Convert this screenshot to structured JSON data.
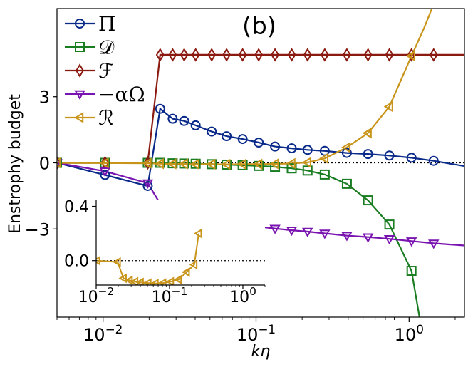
{
  "chart_data": {
    "type": "line",
    "xscale": "log",
    "xlabel": "kη",
    "ylabel": "Enstrophy budget",
    "panel_label": "(b)",
    "xlim": [
      0.005,
      2.3
    ],
    "ylim": [
      -7,
      7
    ],
    "yticks": [
      {
        "value": -3,
        "label": "−3"
      },
      {
        "value": 0,
        "label": "0"
      },
      {
        "value": 3,
        "label": "3"
      }
    ],
    "xticks": [
      {
        "value": 0.01,
        "base": "10",
        "exp": "−2"
      },
      {
        "value": 0.1,
        "base": "10",
        "exp": "−1"
      },
      {
        "value": 1,
        "base": "10",
        "exp": "0"
      }
    ],
    "zero_line": true,
    "legend": {
      "placement": "top-left"
    },
    "series": [
      {
        "name": "Π",
        "label": "Π",
        "color": "#0a2a8a",
        "marker": "circle",
        "x": [
          0.005,
          0.0103,
          0.0196,
          0.0236,
          0.0285,
          0.0339,
          0.0403,
          0.0513,
          0.0642,
          0.0817,
          0.104,
          0.133,
          0.171,
          0.217,
          0.281,
          0.392,
          0.539,
          0.743,
          1.037,
          1.447
        ],
        "y": [
          0,
          -0.55,
          -1.05,
          2.45,
          2.0,
          1.9,
          1.7,
          1.42,
          1.21,
          1.08,
          0.92,
          0.74,
          0.66,
          0.59,
          0.54,
          0.45,
          0.4,
          0.33,
          0.23,
          0.09
        ],
        "line_x": [
          0.005,
          0.0103,
          0.0196,
          0.0236,
          0.0285,
          0.0339,
          0.0403,
          0.0513,
          0.0642,
          0.0817,
          0.104,
          0.133,
          0.171,
          0.217,
          0.281,
          0.392,
          0.539,
          0.743,
          1.037,
          1.447,
          2.3
        ],
        "line_y": [
          0,
          -0.55,
          -1.05,
          2.45,
          2.0,
          1.9,
          1.7,
          1.42,
          1.21,
          1.08,
          0.92,
          0.74,
          0.66,
          0.59,
          0.54,
          0.45,
          0.4,
          0.33,
          0.23,
          0.09,
          -0.15
        ]
      },
      {
        "name": "D",
        "label": "𝒟",
        "color": "#1a7d22",
        "marker": "square",
        "x": [
          0.005,
          0.0103,
          0.0196,
          0.0236,
          0.0285,
          0.0339,
          0.0403,
          0.0513,
          0.0642,
          0.0817,
          0.104,
          0.133,
          0.171,
          0.217,
          0.281,
          0.392,
          0.539,
          0.743,
          1.037
        ],
        "y": [
          0,
          0,
          0,
          0,
          -0.02,
          -0.03,
          -0.04,
          -0.06,
          -0.08,
          -0.11,
          -0.14,
          -0.18,
          -0.25,
          -0.35,
          -0.53,
          -0.95,
          -1.7,
          -2.8,
          -4.9
        ],
        "line_x": [
          0.005,
          0.0103,
          0.0196,
          0.0236,
          0.0285,
          0.0339,
          0.0403,
          0.0513,
          0.0642,
          0.0817,
          0.104,
          0.133,
          0.171,
          0.217,
          0.281,
          0.392,
          0.539,
          0.743,
          1.037,
          1.17
        ],
        "line_y": [
          0,
          0,
          0,
          0,
          -0.02,
          -0.03,
          -0.04,
          -0.06,
          -0.08,
          -0.11,
          -0.14,
          -0.18,
          -0.25,
          -0.35,
          -0.53,
          -0.95,
          -1.7,
          -2.8,
          -4.9,
          -7
        ]
      },
      {
        "name": "F",
        "label": "ℱ",
        "color": "#8b1a10",
        "marker": "diamond",
        "x": [
          0.005,
          0.0103,
          0.0196,
          0.0236,
          0.0285,
          0.0339,
          0.0403,
          0.0513,
          0.0642,
          0.0817,
          0.104,
          0.133,
          0.171,
          0.217,
          0.281,
          0.392,
          0.539,
          0.743,
          1.037,
          1.447
        ],
        "y": [
          0,
          0,
          0,
          4.9,
          4.9,
          4.9,
          4.9,
          4.9,
          4.9,
          4.9,
          4.9,
          4.9,
          4.9,
          4.9,
          4.9,
          4.9,
          4.9,
          4.9,
          4.9,
          4.9
        ],
        "line_x": [
          0.005,
          0.0103,
          0.0196,
          0.0236,
          0.0285,
          0.0339,
          0.0403,
          0.0513,
          0.0642,
          0.0817,
          0.104,
          0.133,
          0.171,
          0.217,
          0.281,
          0.392,
          0.539,
          0.743,
          1.037,
          1.447,
          2.3
        ],
        "line_y": [
          0,
          0,
          0,
          4.9,
          4.9,
          4.9,
          4.9,
          4.9,
          4.9,
          4.9,
          4.9,
          4.9,
          4.9,
          4.9,
          4.9,
          4.9,
          4.9,
          4.9,
          4.9,
          4.9,
          4.9
        ]
      },
      {
        "name": "-alphaOmega",
        "label": "−αΩ",
        "color": "#7a14b0",
        "marker": "triangle-down",
        "x": [
          0.005,
          0.0103,
          0.0196,
          0.0236,
          0.0285,
          0.0339,
          0.0403,
          0.0513,
          0.0642,
          0.0817,
          0.104,
          0.133,
          0.171,
          0.217,
          0.281,
          0.392,
          0.539,
          0.743,
          1.037,
          1.447
        ],
        "y": [
          0,
          -0.38,
          -0.92,
          -1.85,
          -2.1,
          -2.25,
          -2.4,
          -2.55,
          -2.7,
          -2.8,
          -2.9,
          -2.98,
          -3.06,
          -3.12,
          -3.2,
          -3.3,
          -3.37,
          -3.45,
          -3.55,
          -3.65
        ],
        "line_x": [
          0.005,
          0.0103,
          0.0196,
          0.0236,
          0.0285,
          0.0339,
          0.0403,
          0.0513,
          0.0642,
          0.0817,
          0.104,
          0.133,
          0.171,
          0.217,
          0.281,
          0.392,
          0.539,
          0.743,
          1.037,
          1.447,
          2.3
        ],
        "line_y": [
          0,
          -0.38,
          -0.92,
          -1.85,
          -2.1,
          -2.25,
          -2.4,
          -2.55,
          -2.7,
          -2.8,
          -2.9,
          -2.98,
          -3.06,
          -3.12,
          -3.2,
          -3.3,
          -3.37,
          -3.45,
          -3.55,
          -3.65,
          -3.75
        ]
      },
      {
        "name": "R",
        "label": "ℛ",
        "color": "#c8941a",
        "marker": "triangle-left",
        "x": [
          0.005,
          0.0103,
          0.0196,
          0.0236,
          0.0285,
          0.0339,
          0.0403,
          0.0513,
          0.0642,
          0.0817,
          0.104,
          0.133,
          0.171,
          0.217,
          0.281,
          0.392,
          0.539,
          0.743,
          1.037
        ],
        "y": [
          0,
          -0.01,
          -0.02,
          -0.04,
          -0.05,
          -0.05,
          -0.06,
          -0.06,
          -0.07,
          -0.06,
          -0.06,
          -0.05,
          -0.03,
          0.02,
          0.2,
          0.7,
          1.35,
          2.55,
          4.85
        ],
        "line_x": [
          0.005,
          0.0103,
          0.0196,
          0.0236,
          0.0285,
          0.0339,
          0.0403,
          0.0513,
          0.0642,
          0.0817,
          0.104,
          0.133,
          0.171,
          0.217,
          0.281,
          0.392,
          0.539,
          0.743,
          1.037,
          1.25,
          1.41
        ],
        "line_y": [
          0,
          -0.01,
          -0.02,
          -0.04,
          -0.05,
          -0.05,
          -0.06,
          -0.06,
          -0.07,
          -0.06,
          -0.06,
          -0.05,
          -0.03,
          0.02,
          0.2,
          0.7,
          1.35,
          2.55,
          4.85,
          6.1,
          7
        ]
      }
    ],
    "inset": {
      "xscale": "log",
      "xlim": [
        0.01,
        2.0
      ],
      "ylim": [
        -0.18,
        0.45
      ],
      "yticks": [
        {
          "value": 0.0,
          "label": "0.0"
        },
        {
          "value": 0.4,
          "label": "0.4"
        }
      ],
      "xticks": [
        {
          "value": 0.01,
          "base": "10",
          "exp": "−2"
        },
        {
          "value": 0.1,
          "base": "10",
          "exp": "−1"
        },
        {
          "value": 1,
          "base": "10",
          "exp": "0"
        }
      ],
      "zero_line": true,
      "series": {
        "name": "R",
        "color": "#c8941a",
        "marker": "triangle-left",
        "x": [
          0.0103,
          0.0196,
          0.0236,
          0.0285,
          0.0339,
          0.0403,
          0.0513,
          0.0642,
          0.0817,
          0.104,
          0.133,
          0.171,
          0.217,
          0.25
        ],
        "y": [
          0.0,
          -0.01,
          -0.13,
          -0.145,
          -0.155,
          -0.16,
          -0.165,
          -0.168,
          -0.165,
          -0.155,
          -0.14,
          -0.085,
          -0.03,
          0.2
        ]
      }
    }
  }
}
